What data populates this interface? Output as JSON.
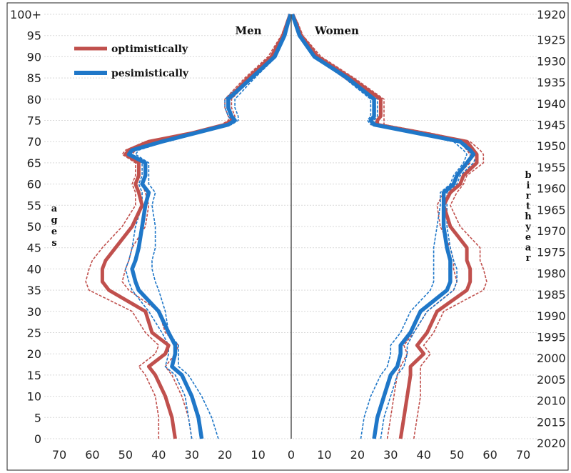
{
  "chart_data": {
    "type": "line",
    "title": "",
    "labels": {
      "men": "Men",
      "women": "Women",
      "left_axis": "ages",
      "right_axis": "birth year"
    },
    "legend": [
      {
        "label": "optimistically",
        "color": "#C0504D"
      },
      {
        "label": "pesimistically",
        "color": "#1F77C8"
      }
    ],
    "x_ticks": [
      "70",
      "60",
      "50",
      "40",
      "30",
      "20",
      "10",
      "0",
      "10",
      "20",
      "30",
      "40",
      "50",
      "60",
      "70"
    ],
    "y_ticks": [
      "0",
      "5",
      "10",
      "15",
      "20",
      "25",
      "30",
      "35",
      "40",
      "45",
      "50",
      "55",
      "60",
      "65",
      "70",
      "75",
      "80",
      "85",
      "90",
      "95",
      "100+"
    ],
    "right_ticks": [
      "2020",
      "2015",
      "2010",
      "2005",
      "2000",
      "1995",
      "1990",
      "1985",
      "1980",
      "1975",
      "1970",
      "1965",
      "1960",
      "1955",
      "1950",
      "1945",
      "1940",
      "1935",
      "1930",
      "1925",
      "1920"
    ],
    "xlim": [
      -70,
      70
    ],
    "ylim": [
      0,
      100
    ],
    "ages": [
      0,
      5,
      10,
      15,
      17,
      20,
      22,
      25,
      30,
      35,
      37,
      40,
      42,
      45,
      50,
      55,
      58,
      60,
      62,
      65,
      67,
      68,
      70,
      72,
      74,
      75,
      76,
      78,
      80,
      85,
      90,
      95,
      98,
      100
    ],
    "series": [
      {
        "name": "optimistically",
        "color": "#C0504D",
        "men": [
          35,
          36,
          38,
          41,
          43,
          38,
          37,
          42,
          44,
          55,
          57,
          57,
          56,
          53,
          48,
          45,
          46,
          47,
          46,
          46,
          50,
          49,
          43,
          30,
          20,
          18,
          18,
          19,
          19,
          13,
          6,
          2.5,
          1.2,
          0.3
        ],
        "men_lo": [
          40,
          40,
          41,
          44,
          46,
          41,
          40,
          44,
          48,
          61,
          62,
          61,
          60,
          57,
          51,
          47,
          47,
          48,
          47,
          47,
          51,
          50,
          44,
          31,
          21,
          19,
          19,
          20,
          20,
          14,
          7,
          3,
          1.5,
          0.4
        ],
        "men_hi": [
          30,
          31,
          33,
          36,
          38,
          35,
          34,
          38,
          40,
          49,
          51,
          50,
          49,
          48,
          44,
          43,
          44,
          45,
          44,
          44,
          48,
          47,
          41,
          29,
          19,
          17,
          17,
          18,
          18,
          12,
          5.5,
          2.2,
          1,
          0.2
        ],
        "women": [
          33,
          34,
          35,
          36,
          36,
          40,
          38,
          41,
          44,
          53,
          54,
          54,
          53,
          53,
          48,
          46,
          48,
          51,
          52,
          56,
          56,
          55,
          53,
          40,
          26,
          26,
          27,
          27,
          27,
          18,
          8,
          3,
          1.5,
          0.4
        ],
        "women_lo": [
          37,
          38,
          39,
          39,
          39,
          42,
          40,
          43,
          46,
          58,
          59,
          58,
          57,
          57,
          51,
          48,
          50,
          52,
          53,
          58,
          58,
          57,
          54,
          42,
          28,
          28,
          28,
          28,
          28,
          19,
          9,
          3.5,
          2,
          0.5
        ],
        "women_hi": [
          29,
          30,
          31,
          32,
          33,
          35,
          34,
          37,
          41,
          49,
          50,
          49,
          49,
          48,
          45,
          44,
          46,
          49,
          50,
          54,
          54,
          53,
          51,
          38,
          24,
          24,
          25,
          25,
          25,
          16,
          7,
          2.8,
          1.2,
          0.3
        ]
      },
      {
        "name": "pesimistically",
        "color": "#1F77C8",
        "men": [
          27,
          28,
          30,
          33,
          36,
          35,
          35,
          37,
          40,
          46,
          47,
          48,
          47,
          46,
          45,
          44,
          43,
          45,
          44,
          44,
          49,
          48,
          39,
          29,
          19,
          17,
          18,
          19,
          19,
          12,
          5,
          2,
          1,
          0.2
        ],
        "men_lo": [
          30,
          31,
          32,
          35,
          38,
          37,
          37,
          39,
          43,
          48,
          49,
          50,
          49,
          48,
          47,
          45,
          45,
          46,
          45,
          45,
          50,
          49,
          40,
          30,
          20,
          18,
          19,
          20,
          20,
          13,
          5.5,
          2.5,
          1.2,
          0.3
        ],
        "men_hi": [
          22,
          24,
          27,
          31,
          34,
          34,
          34,
          37,
          38,
          40,
          41,
          42,
          42,
          41,
          41,
          42,
          41,
          43,
          43,
          43,
          47,
          46,
          38,
          28,
          18,
          16,
          16,
          17,
          17,
          11,
          4.5,
          1.8,
          0.8,
          0.1
        ],
        "women": [
          25,
          26,
          28,
          30,
          32,
          33,
          33,
          36,
          39,
          47,
          48,
          48,
          48,
          47,
          46,
          46,
          46,
          49,
          50,
          53,
          55,
          54,
          51,
          38,
          25,
          24,
          25,
          25,
          25,
          17,
          7,
          2.5,
          1.2,
          0.3
        ],
        "women_lo": [
          27,
          28,
          30,
          32,
          34,
          35,
          35,
          37,
          41,
          49,
          50,
          50,
          49,
          48,
          47,
          47,
          47,
          50,
          51,
          55,
          56,
          55,
          52,
          39,
          26,
          25,
          26,
          26,
          26,
          18,
          7.5,
          3,
          1.5,
          0.4
        ],
        "women_hi": [
          21,
          22,
          24,
          27,
          29,
          30,
          30,
          33,
          36,
          42,
          43,
          43,
          43,
          43,
          44,
          45,
          45,
          48,
          49,
          52,
          53,
          52,
          49,
          37,
          24,
          23,
          24,
          24,
          24,
          16,
          6.5,
          2.2,
          1,
          0.2
        ]
      }
    ]
  }
}
